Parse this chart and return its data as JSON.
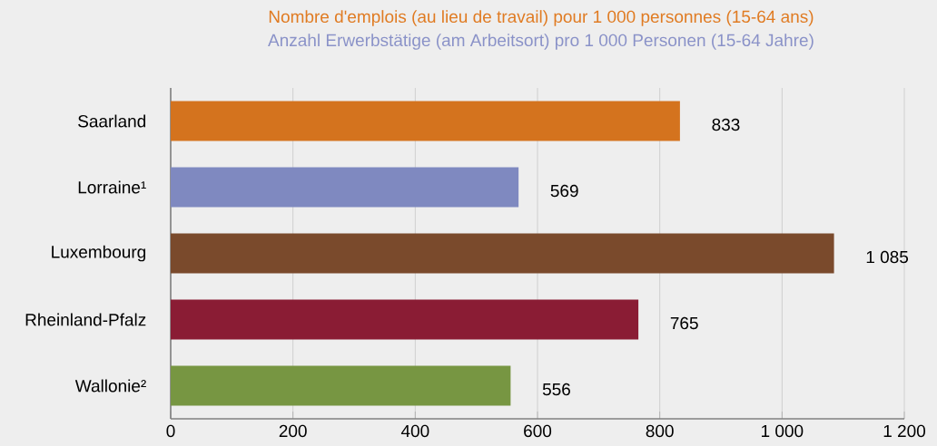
{
  "chart_data": {
    "type": "bar",
    "orientation": "horizontal",
    "title": "Nombre d'emplois (au lieu de travail) pour 1 000 personnes (15-64 ans)",
    "subtitle": "Anzahl Erwerbstätige (am Arbeitsort) pro 1 000 Personen (15-64 Jahre)",
    "categories": [
      "Saarland",
      "Lorraine¹",
      "Luxembourg",
      "Rheinland-Pfalz",
      "Wallonie²"
    ],
    "values": [
      833,
      569,
      1085,
      765,
      556
    ],
    "colors": [
      "#d4731e",
      "#7f89c0",
      "#7a4a2c",
      "#8a1c34",
      "#779642"
    ],
    "value_labels": [
      "833",
      "569",
      "1 085",
      "765",
      "556"
    ],
    "xlim": [
      0,
      1200
    ],
    "xticks": [
      0,
      200,
      400,
      600,
      800,
      {
        "value": 1000,
        "label": "1 000"
      },
      {
        "value": 1200,
        "label": "1 200"
      }
    ],
    "grid": "x"
  }
}
